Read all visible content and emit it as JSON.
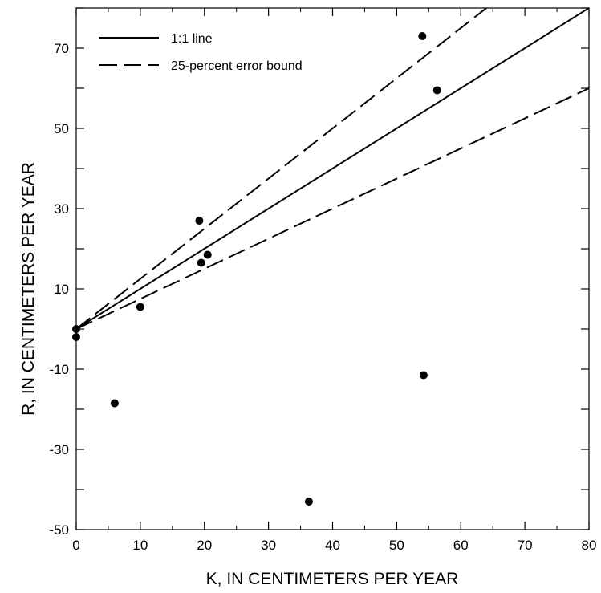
{
  "chart_data": {
    "type": "scatter",
    "xlabel": "K, IN CENTIMETERS PER YEAR",
    "ylabel": "R, IN CENTIMETERS PER YEAR",
    "xlim": [
      0,
      80
    ],
    "ylim": [
      -50,
      80
    ],
    "x_ticks": [
      0,
      10,
      20,
      30,
      40,
      50,
      60,
      70,
      80
    ],
    "y_ticks": [
      -50,
      -30,
      -10,
      10,
      30,
      50,
      70
    ],
    "grid": false,
    "legend_position": "top-left",
    "legend": [
      {
        "label": "1:1 line",
        "style": "solid"
      },
      {
        "label": "25-percent error bound",
        "style": "dashed"
      }
    ],
    "lines": [
      {
        "style": "solid",
        "slope": 1.0
      },
      {
        "style": "dashed",
        "slope": 1.25
      },
      {
        "style": "dashed",
        "slope": 0.75
      }
    ],
    "points": [
      {
        "x": 0,
        "y": 0
      },
      {
        "x": 0,
        "y": -2
      },
      {
        "x": 6,
        "y": -18.5
      },
      {
        "x": 10,
        "y": 5.5
      },
      {
        "x": 19.2,
        "y": 27
      },
      {
        "x": 19.5,
        "y": 16.5
      },
      {
        "x": 20.5,
        "y": 18.5
      },
      {
        "x": 36.3,
        "y": -43
      },
      {
        "x": 54,
        "y": 73
      },
      {
        "x": 54.2,
        "y": -11.5
      },
      {
        "x": 56.3,
        "y": 59.5
      }
    ]
  }
}
